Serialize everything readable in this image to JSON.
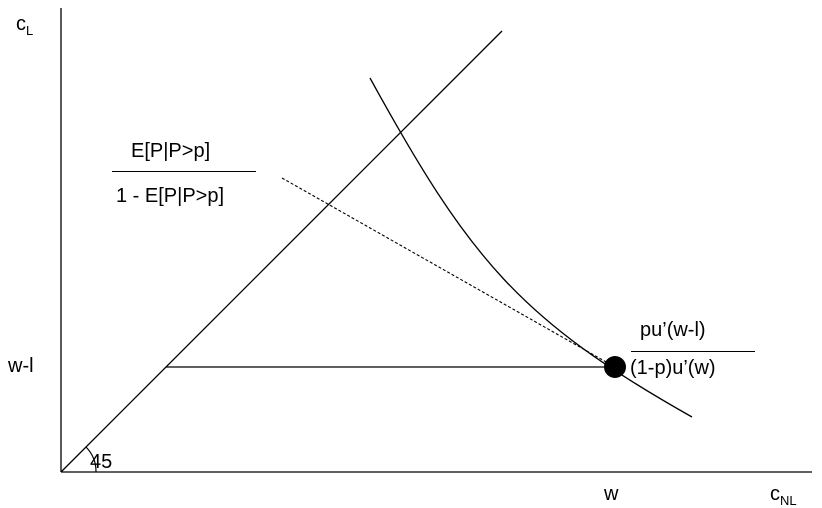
{
  "axes": {
    "y_label": "c",
    "y_label_sub": "L",
    "x_label": "c",
    "x_label_sub": "NL",
    "y_tick": "w-l",
    "x_tick": "w",
    "angle_label": "45"
  },
  "ratios": {
    "dashed_numerator": "E[P|P>p]",
    "dashed_denominator": "1 - E[P|P>p]",
    "tangent_numerator": "pu’(w-l)",
    "tangent_denominator": "(1-p)u’(w)"
  },
  "colors": {
    "line": "#000000",
    "point": "#000000"
  }
}
